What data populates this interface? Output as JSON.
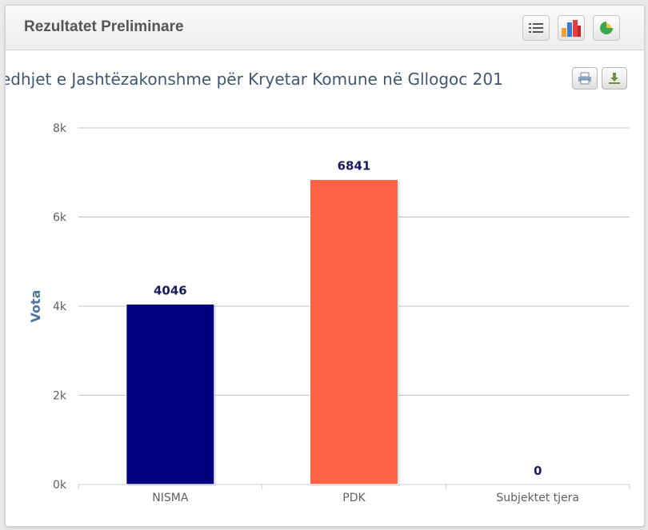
{
  "panel": {
    "title": "Rezultatet Preliminare",
    "buttons": [
      {
        "icon": "list-icon"
      },
      {
        "icon": "bar-chart-icon"
      },
      {
        "icon": "pie-chart-icon"
      }
    ]
  },
  "chart_title_visible": "edhjet e Jashtëzakonshme për Kryetar Komune në Gllogoc 201",
  "export": {
    "print_icon": "print-icon",
    "download_icon": "download-icon"
  },
  "chart_data": {
    "type": "bar",
    "categories": [
      "NISMA",
      "PDK",
      "Subjektet tjera"
    ],
    "values": [
      4046,
      6841,
      0
    ],
    "colors": [
      "#000080",
      "#ff6347",
      "#cccccc"
    ],
    "ylabel": "Vota",
    "ylim": [
      0,
      8000
    ],
    "yticks": [
      0,
      2000,
      4000,
      6000,
      8000
    ],
    "ytick_labels": [
      "0k",
      "2k",
      "4k",
      "6k",
      "8k"
    ],
    "grid": true,
    "data_labels": [
      "4046",
      "6841",
      "0"
    ]
  }
}
